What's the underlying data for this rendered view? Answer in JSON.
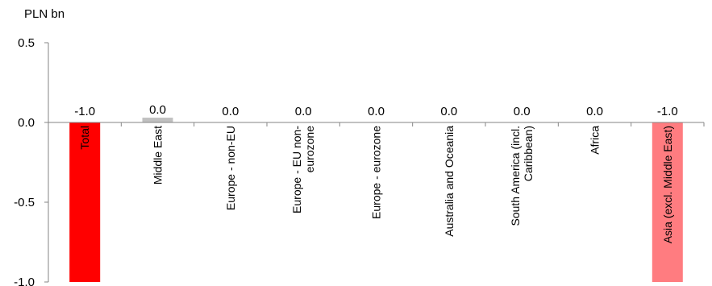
{
  "chart_data": {
    "type": "bar",
    "unit_label": "PLN bn",
    "categories": [
      "Total",
      "Middle East",
      "Europe - non-EU",
      "Europe - EU non-eurozone",
      "Europe - eurozone",
      "Australia and Oceania",
      "South America (incl. Caribbean)",
      "Africa",
      "Asia (excl. Middle East)"
    ],
    "category_lines": [
      [
        "Total"
      ],
      [
        "Middle East"
      ],
      [
        "Europe - non-EU"
      ],
      [
        "Europe - EU non-",
        "eurozone"
      ],
      [
        "Europe - eurozone"
      ],
      [
        "Australia and Oceania"
      ],
      [
        "South America (incl.",
        "Caribbean)"
      ],
      [
        "Africa"
      ],
      [
        "Asia (excl. Middle East)"
      ]
    ],
    "values": [
      -1.0,
      0.03,
      0.0,
      0.0,
      0.0,
      0.0,
      0.0,
      0.0,
      -1.0
    ],
    "data_labels": [
      "-1.0",
      "0.0",
      "0.0",
      "0.0",
      "0.0",
      "0.0",
      "0.0",
      "0.0",
      "-1.0"
    ],
    "colors": [
      "#ff0000",
      "#c0c0c0",
      "#c0c0c0",
      "#c0c0c0",
      "#c0c0c0",
      "#c0c0c0",
      "#c0c0c0",
      "#c0c0c0",
      "#ff7c80"
    ],
    "yticks": [
      0.5,
      0.0,
      -0.5,
      -1.0
    ],
    "ytick_labels": [
      "0.5",
      "0.0",
      "-0.5",
      "-1.0"
    ],
    "ylim": [
      -1.0,
      0.5
    ],
    "grid": false,
    "legend": "none"
  }
}
